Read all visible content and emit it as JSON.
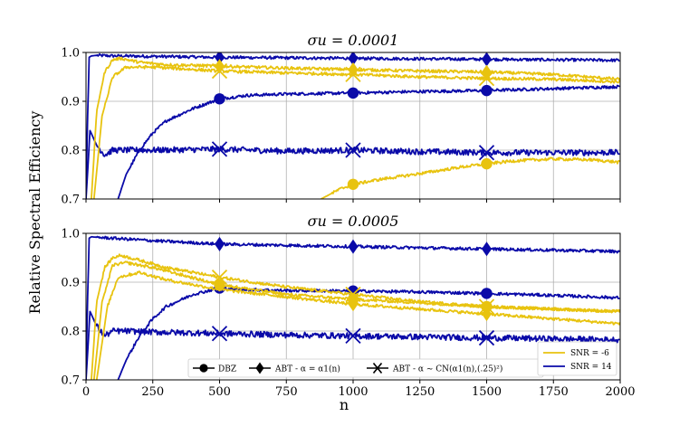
{
  "figure": {
    "ylabel": "Relative Spectral Efficiency",
    "xlabel": "n"
  },
  "chart_data": [
    {
      "type": "line",
      "title": "σ_u = 0.0001",
      "title_text": "σu = 0.0001",
      "xlim": [
        0,
        2000
      ],
      "ylim": [
        0.7,
        1.0
      ],
      "xticks": [
        0,
        250,
        500,
        750,
        1000,
        1250,
        1500,
        1750,
        2000
      ],
      "yticks": [
        0.7,
        0.8,
        0.9,
        1.0
      ],
      "ytick_labels": [
        "0.7",
        "0.8",
        "0.9",
        "1.0"
      ],
      "show_xtick_labels": false,
      "grid": true,
      "series": [
        {
          "name": "SNR = 14 - ABT α=α1(n)",
          "snr": "14",
          "method": "ABT - α = α1(n)",
          "color": "#0a0aa8",
          "x": [
            0,
            5,
            12,
            20,
            40,
            100,
            250,
            500,
            1000,
            1500,
            2000
          ],
          "y": [
            0.7,
            0.85,
            0.99,
            0.993,
            0.994,
            0.993,
            0.992,
            0.99,
            0.988,
            0.986,
            0.984
          ],
          "markers_at": [
            500,
            1000,
            1500
          ],
          "marker": "diamond"
        },
        {
          "name": "SNR = 14 - DBZ",
          "snr": "14",
          "method": "DBZ",
          "color": "#0a0aa8",
          "x": [
            120,
            150,
            200,
            250,
            300,
            400,
            500,
            600,
            750,
            1000,
            1250,
            1500,
            1750,
            2000
          ],
          "y": [
            0.7,
            0.75,
            0.8,
            0.835,
            0.86,
            0.885,
            0.905,
            0.912,
            0.915,
            0.917,
            0.92,
            0.922,
            0.926,
            0.93
          ],
          "markers_at": [
            500,
            1000,
            1500
          ],
          "marker": "circle"
        },
        {
          "name": "SNR = 14 - ABT α~CN",
          "snr": "14",
          "method": "ABT - α ~ CN(α1(n),(.25)²)",
          "color": "#0a0aa8",
          "x": [
            0,
            15,
            40,
            70,
            100,
            150,
            250,
            500,
            750,
            1000,
            1250,
            1500,
            1750,
            2000
          ],
          "y": [
            0.7,
            0.84,
            0.81,
            0.79,
            0.8,
            0.8,
            0.8,
            0.802,
            0.798,
            0.8,
            0.797,
            0.795,
            0.795,
            0.795
          ],
          "markers_at": [
            500,
            1000,
            1500
          ],
          "marker": "x",
          "noise": 0.006
        },
        {
          "name": "SNR = -6 - curve A",
          "snr": "-6",
          "method": "ABT - α = α1(n)",
          "color": "#e8c30f",
          "x": [
            20,
            40,
            70,
            100,
            130,
            200,
            300,
            500,
            750,
            1000,
            1250,
            1500,
            1750,
            2000
          ],
          "y": [
            0.7,
            0.88,
            0.96,
            0.985,
            0.988,
            0.98,
            0.975,
            0.972,
            0.968,
            0.965,
            0.962,
            0.96,
            0.955,
            0.945
          ],
          "markers_at": [
            500,
            1000,
            1500
          ],
          "marker": "diamond"
        },
        {
          "name": "SNR = -6 - curve B",
          "snr": "-6",
          "method": "ABT - α ~ CN(α1(n),(.25)²)",
          "color": "#e8c30f",
          "x": [
            30,
            60,
            100,
            150,
            250,
            500,
            750,
            1000,
            1250,
            1500,
            1750,
            2000
          ],
          "y": [
            0.7,
            0.87,
            0.95,
            0.97,
            0.97,
            0.962,
            0.958,
            0.955,
            0.95,
            0.947,
            0.945,
            0.94
          ],
          "markers_at": [
            500,
            1000,
            1500
          ],
          "marker": "x"
        },
        {
          "name": "SNR = -6 - DBZ",
          "snr": "-6",
          "method": "DBZ",
          "color": "#e8c30f",
          "x": [
            880,
            950,
            1000,
            1100,
            1250,
            1400,
            1500,
            1600,
            1750,
            1900,
            2000
          ],
          "y": [
            0.7,
            0.72,
            0.73,
            0.74,
            0.752,
            0.765,
            0.772,
            0.778,
            0.782,
            0.78,
            0.775
          ],
          "markers_at": [
            1000,
            1500
          ],
          "marker": "circle"
        }
      ]
    },
    {
      "type": "line",
      "title": "σ_u = 0.0005",
      "title_text": "σu = 0.0005",
      "xlim": [
        0,
        2000
      ],
      "ylim": [
        0.7,
        1.0
      ],
      "xticks": [
        0,
        250,
        500,
        750,
        1000,
        1250,
        1500,
        1750,
        2000
      ],
      "xtick_labels": [
        "0",
        "250",
        "500",
        "750",
        "1000",
        "1250",
        "1500",
        "1750",
        "2000"
      ],
      "yticks": [
        0.7,
        0.8,
        0.9,
        1.0
      ],
      "ytick_labels": [
        "0.7",
        "0.8",
        "0.9",
        "1.0"
      ],
      "show_xtick_labels": true,
      "grid": true,
      "series": [
        {
          "name": "SNR = 14 - ABT α=α1(n)",
          "snr": "14",
          "method": "ABT - α = α1(n)",
          "color": "#0a0aa8",
          "x": [
            0,
            5,
            12,
            20,
            40,
            100,
            250,
            500,
            1000,
            1500,
            2000
          ],
          "y": [
            0.7,
            0.85,
            0.99,
            0.993,
            0.992,
            0.99,
            0.985,
            0.978,
            0.973,
            0.968,
            0.963
          ],
          "markers_at": [
            500,
            1000,
            1500
          ],
          "marker": "diamond"
        },
        {
          "name": "SNR = 14 - DBZ",
          "snr": "14",
          "method": "DBZ",
          "color": "#0a0aa8",
          "x": [
            120,
            150,
            200,
            250,
            300,
            400,
            500,
            600,
            750,
            1000,
            1250,
            1500,
            1750,
            2000
          ],
          "y": [
            0.7,
            0.74,
            0.79,
            0.825,
            0.85,
            0.875,
            0.888,
            0.885,
            0.883,
            0.882,
            0.88,
            0.877,
            0.873,
            0.868
          ],
          "markers_at": [
            500,
            1000,
            1500
          ],
          "marker": "circle"
        },
        {
          "name": "SNR = 14 - ABT α~CN",
          "snr": "14",
          "method": "ABT - α ~ CN(α1(n),(.25)²)",
          "color": "#0a0aa8",
          "x": [
            0,
            15,
            40,
            70,
            100,
            150,
            250,
            500,
            750,
            1000,
            1250,
            1500,
            1750,
            2000
          ],
          "y": [
            0.7,
            0.84,
            0.81,
            0.79,
            0.8,
            0.8,
            0.798,
            0.795,
            0.792,
            0.79,
            0.788,
            0.786,
            0.784,
            0.782
          ],
          "markers_at": [
            500,
            1000,
            1500
          ],
          "marker": "x",
          "noise": 0.006
        },
        {
          "name": "SNR = -6 - curve A",
          "snr": "-6",
          "method": "ABT - α = α1(n)",
          "color": "#e8c30f",
          "x": [
            20,
            40,
            70,
            100,
            130,
            200,
            300,
            500,
            750,
            1000,
            1250,
            1500,
            1750,
            2000
          ],
          "y": [
            0.7,
            0.86,
            0.93,
            0.95,
            0.955,
            0.945,
            0.93,
            0.91,
            0.89,
            0.875,
            0.86,
            0.85,
            0.845,
            0.84
          ],
          "markers_at": [
            500,
            1000,
            1500
          ],
          "marker": "x"
        },
        {
          "name": "SNR = -6 - curve B",
          "snr": "-6",
          "method": "DBZ",
          "color": "#e8c30f",
          "x": [
            30,
            60,
            100,
            150,
            250,
            500,
            750,
            1000,
            1250,
            1500,
            1750,
            2000
          ],
          "y": [
            0.7,
            0.86,
            0.935,
            0.94,
            0.93,
            0.895,
            0.875,
            0.865,
            0.858,
            0.85,
            0.845,
            0.84
          ],
          "markers_at": [
            500,
            1000,
            1500
          ],
          "marker": "circle"
        },
        {
          "name": "SNR = -6 - curve C",
          "snr": "-6",
          "method": "ABT - α = α1(n)",
          "color": "#e8c30f",
          "x": [
            40,
            80,
            120,
            200,
            300,
            500,
            750,
            1000,
            1250,
            1500,
            1750,
            2000
          ],
          "y": [
            0.7,
            0.85,
            0.91,
            0.92,
            0.905,
            0.885,
            0.87,
            0.855,
            0.845,
            0.835,
            0.825,
            0.815
          ],
          "markers_at": [
            1000,
            1500
          ],
          "marker": "diamond"
        }
      ]
    }
  ],
  "legend_methods": {
    "items": [
      {
        "label": "DBZ",
        "marker": "circle"
      },
      {
        "label": "ABT - α = α1(n)",
        "marker": "diamond"
      },
      {
        "label": "ABT - α ~ CN(α1(n),(.25)²)",
        "marker": "x"
      }
    ]
  },
  "legend_snr": {
    "items": [
      {
        "label": "SNR = -6",
        "color": "#e8c30f"
      },
      {
        "label": "SNR = 14",
        "color": "#0a0aa8"
      }
    ]
  }
}
